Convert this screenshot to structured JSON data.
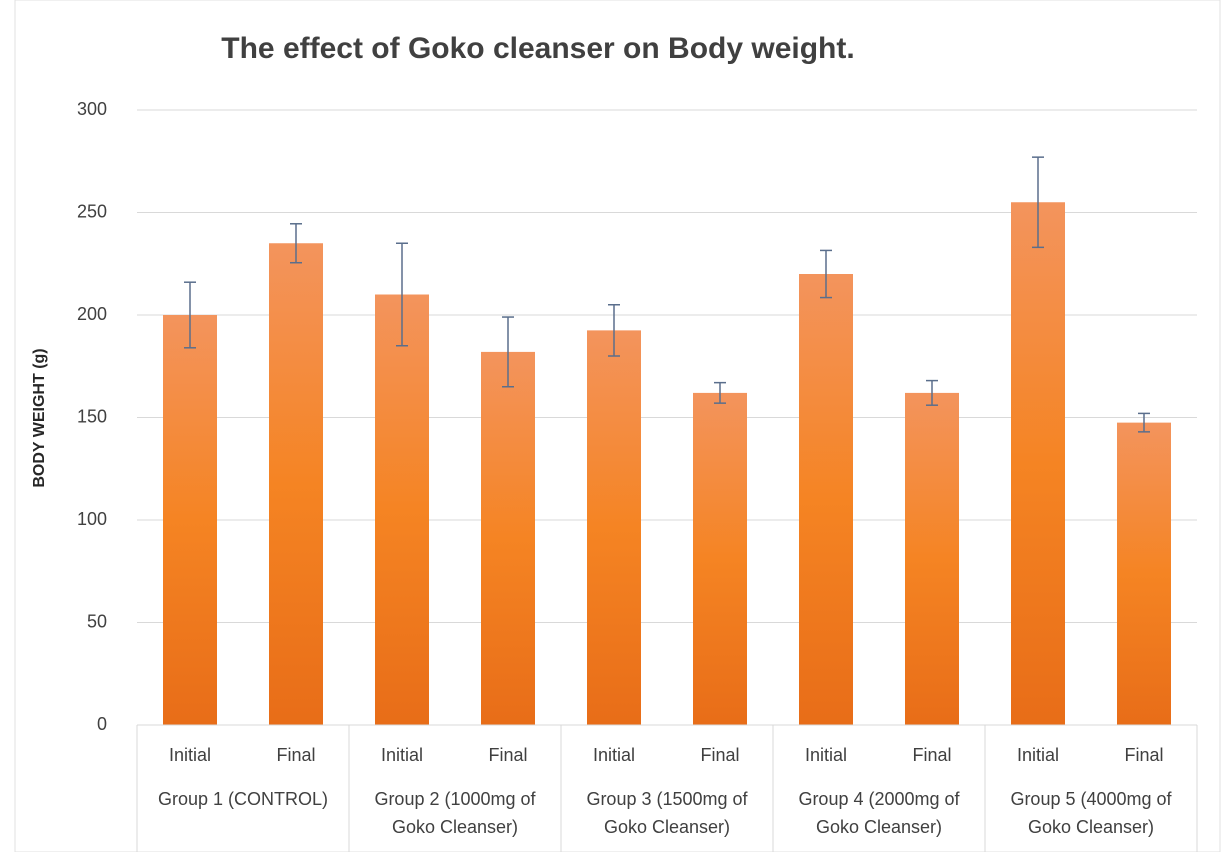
{
  "chart_data": {
    "type": "bar",
    "title": "The effect of Goko cleanser on Body weight.",
    "y_label": "BODY WEIGHT (g)",
    "categories": [
      "Initial",
      "Final",
      "Initial",
      "Final",
      "Initial",
      "Final",
      "Initial",
      "Final",
      "Initial",
      "Final"
    ],
    "groups": [
      "Group 1 (CONTROL)",
      "Group 2 (1000mg of Goko Cleanser)",
      "Group 3 (1500mg of Goko Cleanser)",
      "Group 4 (2000mg of Goko Cleanser)",
      "Group 5 (4000mg of Goko Cleanser)"
    ],
    "values": [
      200,
      235,
      210,
      182,
      192.5,
      162,
      220,
      162,
      255,
      147.5
    ],
    "errors": [
      16,
      9.5,
      25,
      17,
      12.5,
      5,
      11.5,
      6,
      22,
      4.5
    ],
    "color": "#ed7d31",
    "ylim": [
      0,
      300
    ],
    "yticks": [
      0,
      50,
      100,
      150,
      200,
      250,
      300
    ],
    "grid": true
  }
}
